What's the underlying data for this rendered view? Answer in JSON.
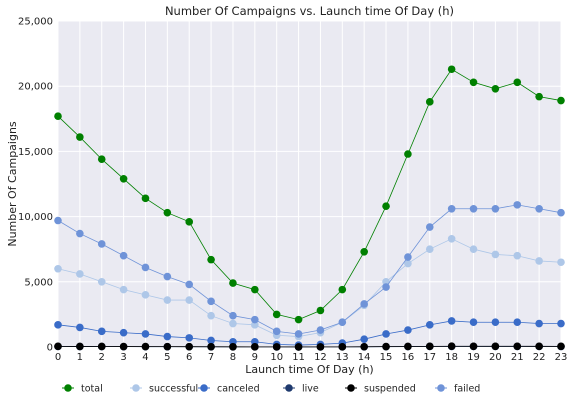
{
  "chart_data": {
    "type": "line",
    "title": "Number Of Campaigns vs. Launch time Of Day (h)",
    "xlabel": "Launch time Of Day (h)",
    "ylabel": "Number Of Campaigns",
    "x": [
      0,
      1,
      2,
      3,
      4,
      5,
      6,
      7,
      8,
      9,
      10,
      11,
      12,
      13,
      14,
      15,
      16,
      17,
      18,
      19,
      20,
      21,
      22,
      23
    ],
    "xlim": [
      0,
      23
    ],
    "ylim": [
      0,
      25000
    ],
    "yticks": [
      0,
      5000,
      10000,
      15000,
      20000,
      25000
    ],
    "ytick_labels": [
      "0",
      "5,000",
      "10,000",
      "15,000",
      "20,000",
      "25,000"
    ],
    "xtick_labels": [
      "0",
      "1",
      "2",
      "3",
      "4",
      "5",
      "6",
      "7",
      "8",
      "9",
      "10",
      "11",
      "12",
      "13",
      "14",
      "15",
      "16",
      "17",
      "18",
      "19",
      "20",
      "21",
      "22",
      "23"
    ],
    "grid": true,
    "legend_position": "bottom",
    "series": [
      {
        "name": "total",
        "color": "#008000",
        "values": [
          17700,
          16100,
          14400,
          12900,
          11400,
          10300,
          9600,
          6700,
          4900,
          4400,
          2500,
          2100,
          2800,
          4400,
          7300,
          10800,
          14800,
          18800,
          21300,
          20300,
          19800,
          20300,
          19200,
          18900
        ]
      },
      {
        "name": "successful",
        "color": "#aec7e8",
        "values": [
          6000,
          5600,
          5000,
          4400,
          4000,
          3600,
          3600,
          2400,
          1800,
          1700,
          900,
          800,
          1100,
          1900,
          3200,
          5000,
          6400,
          7500,
          8300,
          7500,
          7100,
          7000,
          6600,
          6500
        ]
      },
      {
        "name": "canceled",
        "color": "#3a6cc8",
        "values": [
          1700,
          1500,
          1200,
          1100,
          1000,
          800,
          700,
          500,
          400,
          400,
          200,
          150,
          200,
          300,
          600,
          1000,
          1300,
          1700,
          2000,
          1900,
          1900,
          1900,
          1800,
          1800
        ]
      },
      {
        "name": "live",
        "color": "#1f3a6e",
        "values": [
          40,
          35,
          30,
          28,
          25,
          22,
          20,
          15,
          12,
          10,
          8,
          6,
          8,
          10,
          15,
          25,
          30,
          40,
          45,
          42,
          40,
          42,
          40,
          38
        ]
      },
      {
        "name": "suspended",
        "color": "#000000",
        "values": [
          50,
          45,
          40,
          35,
          30,
          28,
          25,
          20,
          15,
          12,
          10,
          8,
          10,
          12,
          20,
          30,
          40,
          50,
          60,
          55,
          55,
          55,
          52,
          50
        ]
      },
      {
        "name": "failed",
        "color": "#6f93d8",
        "values": [
          9700,
          8700,
          7900,
          7000,
          6100,
          5400,
          4800,
          3500,
          2400,
          2100,
          1200,
          1000,
          1300,
          1900,
          3300,
          4600,
          6900,
          9200,
          10600,
          10600,
          10600,
          10900,
          10600,
          10300
        ]
      }
    ]
  }
}
